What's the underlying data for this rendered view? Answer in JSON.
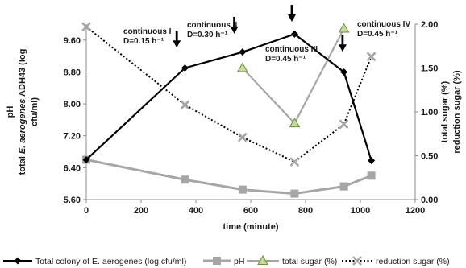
{
  "chart_data": {
    "type": "line",
    "xlabel": "time (minute)",
    "y_left_label_lines": [
      "pH",
      "total E. aerogenes ADH43 (log",
      "cfu/ml)"
    ],
    "y_right_label_lines": [
      "total sugar (%)",
      "reduction sugar (%)"
    ],
    "xlim": [
      0,
      1200
    ],
    "x_ticks": [
      0,
      200,
      400,
      600,
      800,
      1000,
      1200
    ],
    "y_left_lim": [
      5.6,
      10.0
    ],
    "y_left_ticks": [
      "5.60",
      "6.40",
      "7.20",
      "8.00",
      "8.80",
      "9.60"
    ],
    "y_right_lim": [
      0,
      2
    ],
    "y_right_ticks": [
      "0.00",
      "0.50",
      "1.00",
      "1.50",
      "2.00"
    ],
    "grid": false,
    "legend_position": "bottom",
    "series": [
      {
        "name": "Total colony of E. aerogenes (log cfu/ml)",
        "axis": "left",
        "color": "#000000",
        "marker": "diamond",
        "line": "solid",
        "x": [
          0,
          360,
          570,
          760,
          940,
          1040
        ],
        "y": [
          6.6,
          8.9,
          9.3,
          9.75,
          8.8,
          6.58
        ]
      },
      {
        "name": "pH",
        "axis": "left",
        "color": "#a6a6a6",
        "marker": "square",
        "line": "solid",
        "x": [
          0,
          360,
          570,
          760,
          940,
          1040
        ],
        "y": [
          6.6,
          6.1,
          5.85,
          5.75,
          5.93,
          6.2
        ]
      },
      {
        "name": "total sugar (%)",
        "axis": "right",
        "color": "#a6a6a6",
        "marker": "triangle",
        "line": "solid",
        "x": [
          570,
          760,
          940
        ],
        "y": [
          1.5,
          0.87,
          1.95
        ]
      },
      {
        "name": "reduction sugar (%)",
        "axis": "right",
        "color": "#000000",
        "marker": "x",
        "line": "dotted",
        "x": [
          0,
          360,
          570,
          760,
          940,
          1040
        ],
        "y": [
          1.97,
          1.08,
          0.71,
          0.43,
          0.86,
          1.63
        ]
      }
    ],
    "annotations": [
      {
        "lines": [
          "continuous I",
          "D=0.15 h⁻¹"
        ],
        "arrow_x": 330,
        "arrow_y": 9.45
      },
      {
        "lines": [
          "continuous II",
          "D=0.30 h⁻¹"
        ],
        "arrow_x": 540,
        "arrow_y": 9.8
      },
      {
        "lines": [
          "continuous III",
          "D=0.45 h⁻¹"
        ],
        "arrow_x": 750,
        "arrow_y": 10.1
      },
      {
        "lines": [
          "continuous IV",
          "D=0.45 h⁻¹"
        ],
        "arrow_x": 935,
        "arrow_y": 9.35
      }
    ]
  }
}
